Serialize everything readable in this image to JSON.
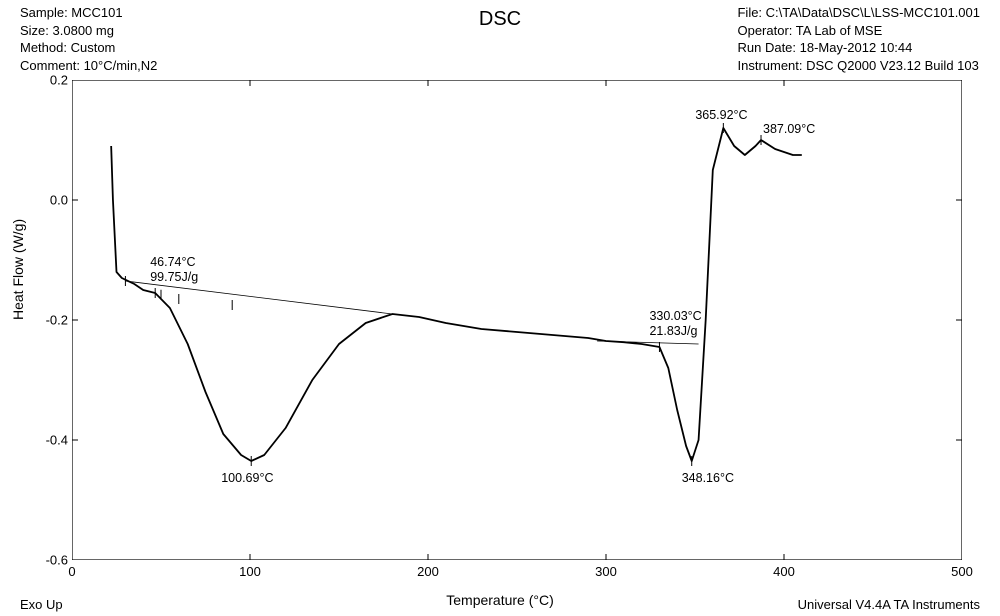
{
  "header": {
    "left": {
      "sample": "Sample: MCC101",
      "size": "Size: 3.0800 mg",
      "method": "Method: Custom",
      "comment": "Comment: 10°C/min,N2"
    },
    "center": "DSC",
    "right": {
      "file": "File: C:\\TA\\Data\\DSC\\L\\LSS-MCC101.001",
      "operator": "Operator: TA Lab of MSE",
      "rundate": "Run Date: 18-May-2012 10:44",
      "instrument": "Instrument: DSC Q2000 V23.12 Build 103"
    }
  },
  "chart": {
    "type": "line",
    "xlabel": "Temperature (°C)",
    "ylabel": "Heat Flow (W/g)",
    "xlim": [
      0,
      500
    ],
    "ylim": [
      -0.6,
      0.2
    ],
    "xticks": [
      0,
      100,
      200,
      300,
      400,
      500
    ],
    "yticks": [
      -0.6,
      -0.4,
      -0.2,
      0.0,
      0.2
    ],
    "line_color": "#000000",
    "line_width": 1.8,
    "grid_color": "#000000",
    "background_color": "#ffffff",
    "tick_fontsize": 13,
    "label_fontsize": 14,
    "curve": [
      [
        22,
        0.09
      ],
      [
        23,
        0.0
      ],
      [
        25,
        -0.12
      ],
      [
        28,
        -0.13
      ],
      [
        35,
        -0.14
      ],
      [
        40,
        -0.15
      ],
      [
        46.74,
        -0.155
      ],
      [
        55,
        -0.18
      ],
      [
        65,
        -0.24
      ],
      [
        75,
        -0.32
      ],
      [
        85,
        -0.39
      ],
      [
        95,
        -0.425
      ],
      [
        100.69,
        -0.435
      ],
      [
        108,
        -0.425
      ],
      [
        120,
        -0.38
      ],
      [
        135,
        -0.3
      ],
      [
        150,
        -0.24
      ],
      [
        165,
        -0.205
      ],
      [
        180,
        -0.19
      ],
      [
        195,
        -0.195
      ],
      [
        210,
        -0.205
      ],
      [
        230,
        -0.215
      ],
      [
        250,
        -0.22
      ],
      [
        270,
        -0.225
      ],
      [
        290,
        -0.23
      ],
      [
        300,
        -0.235
      ],
      [
        310,
        -0.237
      ],
      [
        320,
        -0.24
      ],
      [
        330.03,
        -0.245
      ],
      [
        335,
        -0.28
      ],
      [
        340,
        -0.35
      ],
      [
        345,
        -0.41
      ],
      [
        348.16,
        -0.435
      ],
      [
        352,
        -0.4
      ],
      [
        356,
        -0.2
      ],
      [
        360,
        0.05
      ],
      [
        365.92,
        0.12
      ],
      [
        372,
        0.09
      ],
      [
        378,
        0.075
      ],
      [
        384,
        0.09
      ],
      [
        387.09,
        0.1
      ],
      [
        395,
        0.085
      ],
      [
        405,
        0.075
      ],
      [
        410,
        0.075
      ]
    ],
    "baseline1": [
      [
        30,
        -0.135
      ],
      [
        180,
        -0.19
      ]
    ],
    "baseline2": [
      [
        295,
        -0.235
      ],
      [
        352,
        -0.24
      ]
    ],
    "tick_marks": [
      [
        30,
        -0.135
      ],
      [
        46.74,
        -0.155
      ],
      [
        330.03,
        -0.245
      ],
      [
        348.16,
        -0.435
      ],
      [
        365.92,
        0.12
      ],
      [
        387.09,
        0.1
      ],
      [
        50,
        -0.158
      ],
      [
        60,
        -0.165
      ],
      [
        90,
        -0.175
      ],
      [
        100.69,
        -0.435
      ]
    ]
  },
  "annotations": {
    "a1_line1": "46.74°C",
    "a1_line2": "99.75J/g",
    "a2": "100.69°C",
    "a3_line1": "330.03°C",
    "a3_line2": "21.83J/g",
    "a4": "348.16°C",
    "a5": "365.92°C",
    "a6": "387.09°C"
  },
  "footer": {
    "left": "Exo Up",
    "right": "Universal V4.4A TA Instruments"
  }
}
